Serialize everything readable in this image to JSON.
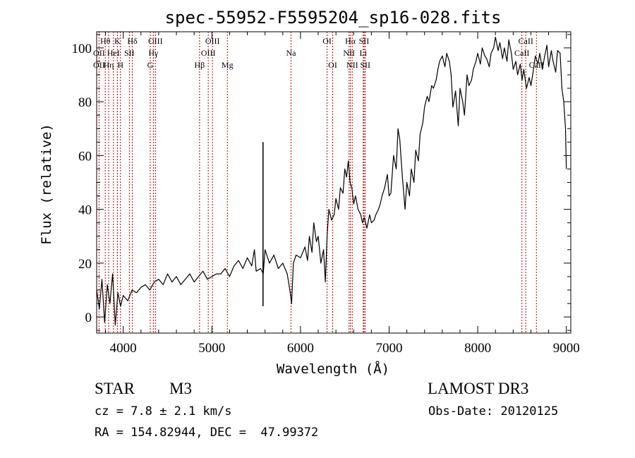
{
  "chart_data": {
    "type": "line",
    "title": "spec-55952-F5595204_sp16-028.fits",
    "xlabel": "Wavelength (Å)",
    "ylabel": "Flux (relative)",
    "xlim": [
      3700,
      9050
    ],
    "ylim": [
      -6,
      106
    ],
    "xticks": [
      4000,
      5000,
      6000,
      7000,
      8000,
      9000
    ],
    "yticks": [
      0,
      20,
      40,
      60,
      80,
      100
    ],
    "series": [
      {
        "name": "flux",
        "x": [
          3700,
          3730,
          3760,
          3790,
          3820,
          3850,
          3880,
          3910,
          3940,
          3970,
          4000,
          4050,
          4100,
          4150,
          4200,
          4250,
          4300,
          4350,
          4400,
          4450,
          4500,
          4550,
          4600,
          4650,
          4700,
          4750,
          4800,
          4850,
          4900,
          4950,
          5000,
          5050,
          5100,
          5150,
          5200,
          5250,
          5300,
          5350,
          5400,
          5450,
          5480,
          5500,
          5550,
          5580,
          5600,
          5650,
          5700,
          5750,
          5800,
          5850,
          5880,
          5900,
          5920,
          5950,
          6000,
          6050,
          6080,
          6100,
          6130,
          6150,
          6180,
          6200,
          6230,
          6260,
          6280,
          6300,
          6320,
          6350,
          6380,
          6400,
          6430,
          6450,
          6480,
          6500,
          6520,
          6540,
          6560,
          6580,
          6600,
          6620,
          6650,
          6680,
          6700,
          6720,
          6750,
          6780,
          6800,
          6830,
          6850,
          6880,
          6900,
          6920,
          6950,
          6980,
          7000,
          7020,
          7050,
          7080,
          7100,
          7120,
          7150,
          7180,
          7200,
          7230,
          7250,
          7280,
          7300,
          7330,
          7350,
          7380,
          7400,
          7430,
          7450,
          7480,
          7500,
          7530,
          7550,
          7570,
          7600,
          7630,
          7650,
          7680,
          7700,
          7720,
          7750,
          7780,
          7800,
          7830,
          7850,
          7880,
          7900,
          7930,
          7950,
          7980,
          8000,
          8030,
          8050,
          8080,
          8100,
          8130,
          8150,
          8180,
          8200,
          8230,
          8250,
          8280,
          8300,
          8330,
          8350,
          8380,
          8400,
          8430,
          8450,
          8480,
          8500,
          8520,
          8550,
          8580,
          8600,
          8620,
          8650,
          8680,
          8700,
          8730,
          8750,
          8780,
          8800,
          8830,
          8850,
          8880,
          8900,
          8930,
          8950,
          8970,
          8990,
          9000
        ],
        "values": [
          10,
          3,
          14,
          -2,
          12,
          5,
          16,
          -3,
          9,
          4,
          8,
          6,
          10,
          9,
          11,
          12,
          10,
          13,
          14,
          12,
          16,
          13,
          15,
          12,
          14,
          16,
          13,
          15,
          17,
          14,
          15,
          16,
          16,
          18,
          15,
          19,
          21,
          18,
          22,
          19,
          25,
          17,
          18,
          16,
          25,
          20,
          23,
          18,
          20,
          16,
          10,
          5,
          20,
          23,
          22,
          26,
          21,
          30,
          24,
          35,
          28,
          30,
          20,
          25,
          13,
          30,
          40,
          36,
          38,
          44,
          40,
          48,
          46,
          55,
          52,
          58,
          50,
          48,
          42,
          45,
          40,
          38,
          35,
          37,
          33,
          38,
          35,
          36,
          38,
          40,
          42,
          45,
          48,
          53,
          45,
          46,
          60,
          55,
          70,
          66,
          52,
          40,
          50,
          45,
          55,
          50,
          62,
          58,
          68,
          72,
          78,
          82,
          80,
          86,
          85,
          88,
          92,
          95,
          97,
          93,
          98,
          95,
          90,
          78,
          84,
          71,
          85,
          80,
          75,
          90,
          86,
          88,
          92,
          95,
          98,
          94,
          100,
          97,
          96,
          93,
          98,
          100,
          104,
          99,
          102,
          96,
          100,
          95,
          103,
          98,
          92,
          95,
          90,
          94,
          88,
          92,
          85,
          89,
          86,
          90,
          97,
          94,
          98,
          92,
          96,
          101,
          93,
          99,
          95,
          91,
          99,
          98,
          85,
          80,
          70,
          55
        ]
      }
    ],
    "spikes": [
      {
        "x": 5577,
        "top": 65,
        "bottom": 4
      }
    ],
    "lines": [
      {
        "label": "Hθ",
        "x": 3797,
        "row": 0
      },
      {
        "label": "OII",
        "x": 3727,
        "row": 1
      },
      {
        "label": "OII",
        "x": 3727,
        "row": 2
      },
      {
        "label": "Hη",
        "x": 3835,
        "row": 2
      },
      {
        "label": "K",
        "x": 3934,
        "row": 0
      },
      {
        "label": "HeI",
        "x": 3889,
        "row": 1
      },
      {
        "label": "SII",
        "x": 4069,
        "row": 1
      },
      {
        "label": "H",
        "x": 3968,
        "row": 2
      },
      {
        "label": "Hδ",
        "x": 4102,
        "row": 0
      },
      {
        "label": "OIII",
        "x": 4363,
        "row": 0
      },
      {
        "label": "Hγ",
        "x": 4340,
        "row": 1
      },
      {
        "label": "G",
        "x": 4305,
        "row": 2
      },
      {
        "label": "Hβ",
        "x": 4861,
        "row": 2
      },
      {
        "label": "OIII",
        "x": 5007,
        "row": 0
      },
      {
        "label": "OIII",
        "x": 4959,
        "row": 1
      },
      {
        "label": "Mg",
        "x": 5175,
        "row": 2
      },
      {
        "label": "Na",
        "x": 5893,
        "row": 1
      },
      {
        "label": "OI",
        "x": 6300,
        "row": 0
      },
      {
        "label": "OI",
        "x": 6363,
        "row": 2
      },
      {
        "label": "Hα",
        "x": 6563,
        "row": 0
      },
      {
        "label": "NII",
        "x": 6548,
        "row": 1
      },
      {
        "label": "NII",
        "x": 6584,
        "row": 2
      },
      {
        "label": "SII",
        "x": 6717,
        "row": 0
      },
      {
        "label": "Li",
        "x": 6708,
        "row": 1
      },
      {
        "label": "SII",
        "x": 6731,
        "row": 2
      },
      {
        "label": "CaII",
        "x": 8542,
        "row": 0
      },
      {
        "label": "CaII",
        "x": 8498,
        "row": 1
      },
      {
        "label": "CaII",
        "x": 8662,
        "row": 2
      }
    ],
    "grid": false,
    "legend": "none"
  },
  "info": {
    "class": "STAR",
    "subclass": "M3",
    "survey": "LAMOST DR3",
    "cz": "cz = 7.8 ± 2.1 km/s",
    "obs_date": "Obs-Date: 20120125",
    "radec": "RA = 154.82944, DEC =  47.99372"
  }
}
